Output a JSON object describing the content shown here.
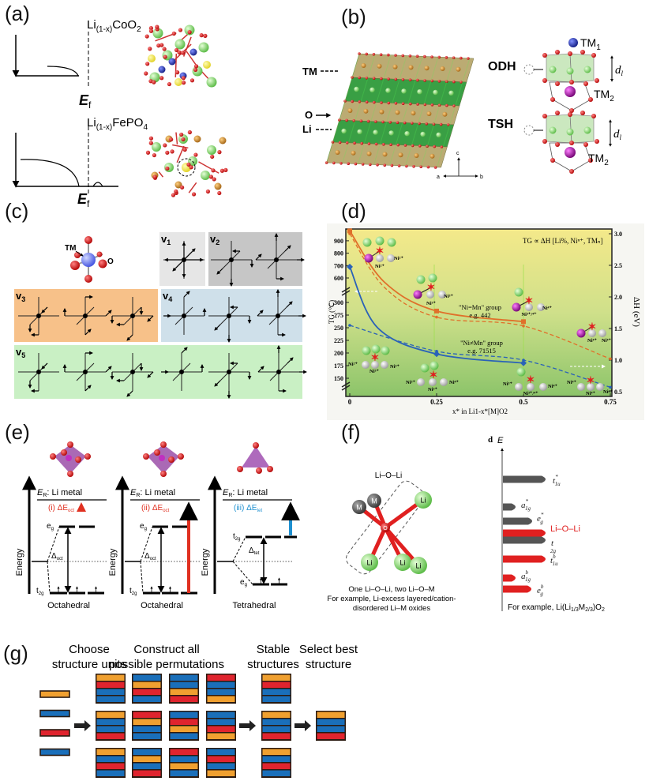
{
  "colors": {
    "orange_unit": "#f0a030",
    "blue_unit": "#1a6fba",
    "red_unit": "#e0242e",
    "li_green": "#7fd36a",
    "oxygen_red": "#cc1111",
    "tm_blue": "#1f2f9a",
    "tm_purple": "#a020a0",
    "slab_tan": "#b8a76c",
    "slab_green": "#2f9a3a",
    "v1_box": "#e6e6e6",
    "v2_box": "#c6c6c6",
    "v3_box": "#f7c189",
    "v4_box": "#cfe0ea",
    "v5_box": "#c9f0c4",
    "series_orange": "#e0702a",
    "series_blue": "#2a62b8",
    "antibonding_gray": "#555555",
    "lioli_red": "#e02020",
    "delta_e_blue": "#1e90d0"
  },
  "a": {
    "label": "(a)",
    "top_formula": {
      "base": "Li",
      "sub": "(1-x)",
      "rest": "CoO",
      "sub2": "2"
    },
    "bottom_formula": {
      "base": "Li",
      "sub": "(1-x)",
      "rest": "FePO",
      "sub2": "4"
    },
    "fermi": {
      "base": "E",
      "sub": "f"
    }
  },
  "b": {
    "label": "(b)",
    "slab_labels": {
      "tm": "TM",
      "o": "O",
      "li": "Li"
    },
    "axes": {
      "a": "a",
      "b": "b",
      "c": "c"
    },
    "odh": "ODH",
    "tsh": "TSH",
    "tm1": {
      "base": "TM",
      "sub": "1"
    },
    "tm2": {
      "base": "TM",
      "sub": "2"
    },
    "dl": {
      "base": "d",
      "sub": "l"
    }
  },
  "c": {
    "label": "(c)",
    "tm": "TM",
    "o": "O",
    "modes": [
      {
        "base": "v",
        "sub": "1"
      },
      {
        "base": "v",
        "sub": "2"
      },
      {
        "base": "v",
        "sub": "3"
      },
      {
        "base": "v",
        "sub": "4"
      },
      {
        "base": "v",
        "sub": "5"
      }
    ]
  },
  "d": {
    "label": "(d)",
    "annotation": "TG ∝ ΔH [Li%, Niⁿ⁺, TMₙ]",
    "group1": "\"Ni=Mn\" group",
    "group1_eg": "e.g. 442",
    "group2": "\"Ni≠Mn\" group",
    "group2_eg": "e.g. 71515",
    "cluster_labels": [
      [
        "Ni²⁺",
        "Ni²⁺"
      ],
      [
        "Ni³⁺",
        "Ni³⁺"
      ],
      [
        "Ni⁴⁺",
        "Ni³⁺/⁴⁺"
      ],
      [
        "Ni⁴⁺",
        "Ni⁴⁺"
      ],
      [
        "Ni²⁺",
        "Ni³⁺",
        "Ni³⁺"
      ],
      [
        "Ni³⁺",
        "Ni⁴⁺",
        "Ni³⁺"
      ],
      [
        "Ni³⁺",
        "Ni⁴⁺",
        "Ni³⁺/⁴⁺"
      ],
      [
        "Ni⁴⁺",
        "Ni⁴⁺",
        "Ni⁴⁺"
      ]
    ]
  },
  "chart_data": {
    "type": "line",
    "xlabel": "x* in Li1-x*[M]O2",
    "ylabel_left": "TG (℃)",
    "ylabel_right": "ΔH (eV)",
    "x": [
      0,
      0.25,
      0.5,
      0.75
    ],
    "xticks": [
      "0",
      "0.25",
      "0.5",
      "0.75"
    ],
    "yticks_left": [
      "150",
      "175",
      "200",
      "225",
      "250",
      "275",
      "300",
      "600",
      "700",
      "800",
      "900"
    ],
    "yticks_right": [
      "0.5",
      "1.0",
      "1.5",
      "2.0",
      "2.5",
      "3.0"
    ],
    "ylim_right": [
      0.5,
      3.05
    ],
    "left_axis_break": true,
    "background": "yellow-to-green gradient",
    "series": [
      {
        "axis": "left",
        "style": "solid",
        "color": "#e0702a",
        "marker": "square",
        "values": [
          980,
          283,
          262,
          null
        ]
      },
      {
        "axis": "right",
        "style": "dashed",
        "color": "#e0702a",
        "values": [
          3.0,
          1.68,
          1.54,
          1.02
        ]
      },
      {
        "axis": "left",
        "style": "solid",
        "color": "#2a62b8",
        "marker": "diamond",
        "values": [
          690,
          198,
          180,
          null
        ]
      },
      {
        "axis": "right",
        "style": "dashed",
        "color": "#2a62b8",
        "values": [
          1.55,
          1.14,
          1.0,
          0.57
        ]
      }
    ]
  },
  "e": {
    "label": "(e)",
    "energy": "Energy",
    "er": {
      "base": "E",
      "sub": "R",
      "rest": ": Li metal"
    },
    "panels": [
      {
        "tag": "(i) ΔE",
        "tag_sub": "oct",
        "upper": "e",
        "upper_sub": "g",
        "lower": "t",
        "lower_sub": "2g",
        "split": "Δ",
        "split_sub": "oct",
        "geometry": "Octahedral"
      },
      {
        "tag": "(ii) ΔE",
        "tag_sub": "oct",
        "upper": "e",
        "upper_sub": "g",
        "lower": "t",
        "lower_sub": "2g",
        "split": "Δ",
        "split_sub": "oct",
        "geometry": "Octahedral"
      },
      {
        "tag": "(iii) ΔE",
        "tag_sub": "tet",
        "upper": "t",
        "upper_sub": "2g",
        "lower": "e",
        "lower_sub": "g",
        "split": "Δ",
        "split_sub": "tet",
        "geometry": "Tetrahedral"
      }
    ]
  },
  "f": {
    "label": "(f)",
    "molecule_title": "Li–O–Li",
    "atom_m": "M",
    "atom_li": "Li",
    "atom_o": "O",
    "caption": [
      "One Li–O–Li, two Li–O–M",
      "For example, Li-excess layered/cation-",
      "disordered Li–M oxides"
    ],
    "subpanel": "d",
    "energy_axis": "E",
    "bands": [
      {
        "base": "t",
        "sub": "1u",
        "sup": "*"
      },
      {
        "base": "a",
        "sub": "1g",
        "sup": "*"
      },
      {
        "base": "e",
        "sub": "g",
        "sup": "*"
      },
      {
        "base": "Li–O–Li",
        "sub": "",
        "sup": ""
      },
      {
        "base": "t",
        "sub": "2g",
        "sup": ""
      },
      {
        "base": "t",
        "sub": "1u",
        "sup": "b"
      },
      {
        "base": "a",
        "sub": "1g",
        "sup": "b"
      },
      {
        "base": "e",
        "sub": "g",
        "sup": "b"
      }
    ],
    "example": {
      "pre": "For example, Li(Li",
      "sub1": "1/3",
      "mid": "M",
      "sub2": "2/3",
      "post": ")O",
      "sub3": "2"
    }
  },
  "g": {
    "label": "(g)",
    "steps": [
      [
        "Choose",
        "structure units"
      ],
      [
        "Construct all",
        "possible permutations"
      ],
      [
        "Stable",
        "structures"
      ],
      [
        "Select best",
        "structure"
      ]
    ],
    "units": [
      "O",
      "B",
      "R",
      "B"
    ],
    "permutations": [
      [
        "ORBB",
        "BORB",
        "BBOR",
        "RBBO"
      ],
      [
        "OBBR",
        "ROBB",
        "BROB",
        "BBRO"
      ],
      [
        "OBRB",
        "BOBR",
        "RBOB",
        "BRBO"
      ]
    ],
    "stable": [
      "ORBB",
      "OBBR",
      "OBRB"
    ],
    "best": "OBBR"
  }
}
